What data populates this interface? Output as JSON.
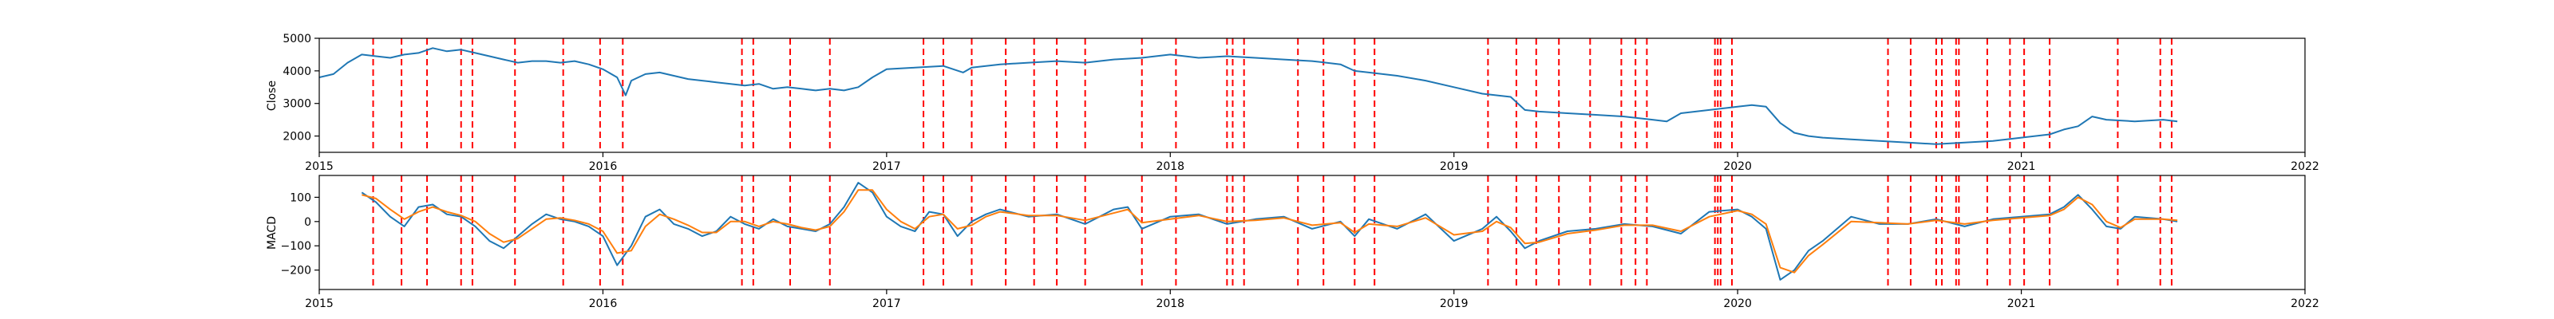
{
  "chart_data": [
    {
      "type": "line",
      "title": "",
      "xlabel": "",
      "ylabel": "Close",
      "xlim": [
        2015.0,
        2022.0
      ],
      "ylim": [
        1500,
        5000
      ],
      "x_ticks": [
        2015,
        2016,
        2017,
        2018,
        2019,
        2020,
        2021,
        2022
      ],
      "x_tick_labels": [
        "2015",
        "2016",
        "2017",
        "2018",
        "2019",
        "2020",
        "2021",
        "2022"
      ],
      "y_ticks": [
        2000,
        3000,
        4000,
        5000
      ],
      "y_tick_labels": [
        "2000",
        "3000",
        "4000",
        "5000"
      ],
      "series": [
        {
          "name": "Close",
          "color": "#1f77b4",
          "x": [
            2015.0,
            2015.05,
            2015.1,
            2015.15,
            2015.2,
            2015.25,
            2015.3,
            2015.35,
            2015.4,
            2015.45,
            2015.5,
            2015.55,
            2015.6,
            2015.65,
            2015.7,
            2015.75,
            2015.8,
            2015.85,
            2015.9,
            2015.95,
            2016.0,
            2016.05,
            2016.08,
            2016.1,
            2016.15,
            2016.2,
            2016.25,
            2016.3,
            2016.35,
            2016.4,
            2016.45,
            2016.5,
            2016.55,
            2016.6,
            2016.65,
            2016.7,
            2016.75,
            2016.8,
            2016.85,
            2016.9,
            2016.95,
            2017.0,
            2017.1,
            2017.2,
            2017.27,
            2017.3,
            2017.4,
            2017.5,
            2017.6,
            2017.7,
            2017.8,
            2017.9,
            2018.0,
            2018.1,
            2018.2,
            2018.3,
            2018.4,
            2018.5,
            2018.6,
            2018.65,
            2018.7,
            2018.8,
            2018.9,
            2019.0,
            2019.1,
            2019.2,
            2019.25,
            2019.3,
            2019.4,
            2019.5,
            2019.6,
            2019.7,
            2019.75,
            2019.8,
            2019.9,
            2020.0,
            2020.05,
            2020.1,
            2020.15,
            2020.2,
            2020.25,
            2020.3,
            2020.4,
            2020.5,
            2020.6,
            2020.7,
            2020.8,
            2020.9,
            2021.0,
            2021.1,
            2021.15,
            2021.2,
            2021.25,
            2021.3,
            2021.4,
            2021.5,
            2021.55
          ],
          "y": [
            3800,
            3900,
            4250,
            4500,
            4450,
            4400,
            4500,
            4550,
            4700,
            4600,
            4650,
            4550,
            4450,
            4350,
            4250,
            4300,
            4300,
            4250,
            4300,
            4200,
            4050,
            3800,
            3250,
            3700,
            3900,
            3950,
            3850,
            3750,
            3700,
            3650,
            3600,
            3550,
            3600,
            3450,
            3500,
            3450,
            3400,
            3450,
            3400,
            3500,
            3800,
            4050,
            4100,
            4150,
            3950,
            4100,
            4200,
            4250,
            4300,
            4250,
            4350,
            4400,
            4500,
            4400,
            4450,
            4400,
            4350,
            4300,
            4200,
            4000,
            3950,
            3850,
            3700,
            3500,
            3300,
            3200,
            2800,
            2750,
            2700,
            2650,
            2600,
            2500,
            2450,
            2700,
            2800,
            2900,
            2950,
            2900,
            2400,
            2100,
            2000,
            1950,
            1900,
            1850,
            1800,
            1750,
            1800,
            1850,
            1950,
            2050,
            2200,
            2300,
            2600,
            2500,
            2450,
            2500,
            2450
          ]
        }
      ]
    },
    {
      "type": "line",
      "title": "",
      "xlabel": "",
      "ylabel": "MACD",
      "xlim": [
        2015.0,
        2022.0
      ],
      "ylim": [
        -280,
        190
      ],
      "x_ticks": [
        2015,
        2016,
        2017,
        2018,
        2019,
        2020,
        2021,
        2022
      ],
      "x_tick_labels": [
        "2015",
        "2016",
        "2017",
        "2018",
        "2019",
        "2020",
        "2021",
        "2022"
      ],
      "y_ticks": [
        -200,
        -100,
        0,
        100
      ],
      "y_tick_labels": [
        "−200",
        "−100",
        "0",
        "100"
      ],
      "series": [
        {
          "name": "MACD",
          "color": "#1f77b4",
          "x": [
            2015.15,
            2015.2,
            2015.25,
            2015.3,
            2015.35,
            2015.4,
            2015.45,
            2015.5,
            2015.55,
            2015.6,
            2015.65,
            2015.7,
            2015.75,
            2015.8,
            2015.85,
            2015.9,
            2015.95,
            2016.0,
            2016.05,
            2016.1,
            2016.15,
            2016.2,
            2016.25,
            2016.3,
            2016.35,
            2016.4,
            2016.45,
            2016.5,
            2016.55,
            2016.6,
            2016.65,
            2016.7,
            2016.75,
            2016.8,
            2016.85,
            2016.9,
            2016.95,
            2017.0,
            2017.05,
            2017.1,
            2017.15,
            2017.2,
            2017.25,
            2017.3,
            2017.35,
            2017.4,
            2017.5,
            2017.6,
            2017.7,
            2017.8,
            2017.85,
            2017.9,
            2018.0,
            2018.1,
            2018.2,
            2018.3,
            2018.4,
            2018.5,
            2018.6,
            2018.65,
            2018.7,
            2018.8,
            2018.9,
            2019.0,
            2019.1,
            2019.15,
            2019.2,
            2019.25,
            2019.3,
            2019.4,
            2019.5,
            2019.6,
            2019.7,
            2019.8,
            2019.9,
            2020.0,
            2020.05,
            2020.1,
            2020.15,
            2020.2,
            2020.25,
            2020.3,
            2020.4,
            2020.5,
            2020.6,
            2020.7,
            2020.8,
            2020.9,
            2021.0,
            2021.1,
            2021.15,
            2021.2,
            2021.25,
            2021.3,
            2021.35,
            2021.4,
            2021.5,
            2021.55
          ],
          "y": [
            120,
            80,
            20,
            -20,
            60,
            70,
            30,
            20,
            -20,
            -80,
            -110,
            -60,
            -10,
            30,
            10,
            0,
            -20,
            -60,
            -180,
            -100,
            20,
            50,
            -10,
            -30,
            -60,
            -40,
            20,
            -10,
            -30,
            10,
            -20,
            -30,
            -40,
            -10,
            60,
            160,
            120,
            20,
            -20,
            -40,
            40,
            30,
            -60,
            0,
            30,
            50,
            20,
            30,
            -10,
            50,
            60,
            -30,
            20,
            30,
            -10,
            10,
            20,
            -30,
            0,
            -60,
            10,
            -30,
            30,
            -80,
            -30,
            20,
            -40,
            -110,
            -80,
            -40,
            -30,
            -10,
            -20,
            -50,
            40,
            50,
            20,
            -30,
            -240,
            -200,
            -120,
            -80,
            20,
            -10,
            -10,
            10,
            -20,
            10,
            20,
            30,
            60,
            110,
            50,
            -20,
            -30,
            20,
            10,
            0
          ]
        },
        {
          "name": "Signal",
          "color": "#ff7f0e",
          "x": [
            2015.15,
            2015.2,
            2015.25,
            2015.3,
            2015.35,
            2015.4,
            2015.45,
            2015.5,
            2015.55,
            2015.6,
            2015.65,
            2015.7,
            2015.75,
            2015.8,
            2015.85,
            2015.9,
            2015.95,
            2016.0,
            2016.05,
            2016.1,
            2016.15,
            2016.2,
            2016.25,
            2016.3,
            2016.35,
            2016.4,
            2016.45,
            2016.5,
            2016.55,
            2016.6,
            2016.65,
            2016.7,
            2016.75,
            2016.8,
            2016.85,
            2016.9,
            2016.95,
            2017.0,
            2017.05,
            2017.1,
            2017.15,
            2017.2,
            2017.25,
            2017.3,
            2017.35,
            2017.4,
            2017.5,
            2017.6,
            2017.7,
            2017.8,
            2017.85,
            2017.9,
            2018.0,
            2018.1,
            2018.2,
            2018.3,
            2018.4,
            2018.5,
            2018.6,
            2018.65,
            2018.7,
            2018.8,
            2018.9,
            2019.0,
            2019.1,
            2019.15,
            2019.2,
            2019.25,
            2019.3,
            2019.4,
            2019.5,
            2019.6,
            2019.7,
            2019.8,
            2019.9,
            2020.0,
            2020.05,
            2020.1,
            2020.15,
            2020.2,
            2020.25,
            2020.3,
            2020.4,
            2020.5,
            2020.6,
            2020.7,
            2020.8,
            2020.9,
            2021.0,
            2021.1,
            2021.15,
            2021.2,
            2021.25,
            2021.3,
            2021.35,
            2021.4,
            2021.5,
            2021.55
          ],
          "y": [
            110,
            95,
            50,
            10,
            40,
            60,
            40,
            25,
            0,
            -50,
            -85,
            -70,
            -30,
            10,
            15,
            5,
            -10,
            -40,
            -130,
            -120,
            -20,
            30,
            10,
            -15,
            -45,
            -45,
            0,
            0,
            -20,
            0,
            -10,
            -25,
            -35,
            -20,
            40,
            130,
            130,
            50,
            0,
            -30,
            20,
            30,
            -30,
            -15,
            20,
            40,
            25,
            25,
            5,
            35,
            50,
            -5,
            10,
            25,
            0,
            5,
            15,
            -15,
            -5,
            -45,
            -10,
            -20,
            15,
            -55,
            -40,
            0,
            -25,
            -90,
            -85,
            -50,
            -35,
            -15,
            -15,
            -40,
            20,
            45,
            30,
            -10,
            -190,
            -210,
            -140,
            -95,
            0,
            -5,
            -10,
            5,
            -10,
            5,
            15,
            25,
            50,
            100,
            70,
            0,
            -25,
            10,
            10,
            5
          ]
        }
      ]
    }
  ],
  "event_markers": {
    "color": "#ff0000",
    "style": "dashed",
    "x": [
      2015.19,
      2015.29,
      2015.38,
      2015.5,
      2015.54,
      2015.69,
      2015.86,
      2015.99,
      2016.07,
      2016.49,
      2016.53,
      2016.66,
      2016.8,
      2017.13,
      2017.2,
      2017.3,
      2017.42,
      2017.52,
      2017.6,
      2017.7,
      2017.9,
      2018.02,
      2018.2,
      2018.22,
      2018.26,
      2018.45,
      2018.54,
      2018.65,
      2018.72,
      2019.12,
      2019.22,
      2019.29,
      2019.37,
      2019.48,
      2019.59,
      2019.64,
      2019.68,
      2019.92,
      2019.93,
      2019.94,
      2019.98,
      2020.53,
      2020.61,
      2020.7,
      2020.72,
      2020.77,
      2020.78,
      2020.88,
      2020.96,
      2021.01,
      2021.1,
      2021.34,
      2021.49,
      2021.53
    ]
  }
}
